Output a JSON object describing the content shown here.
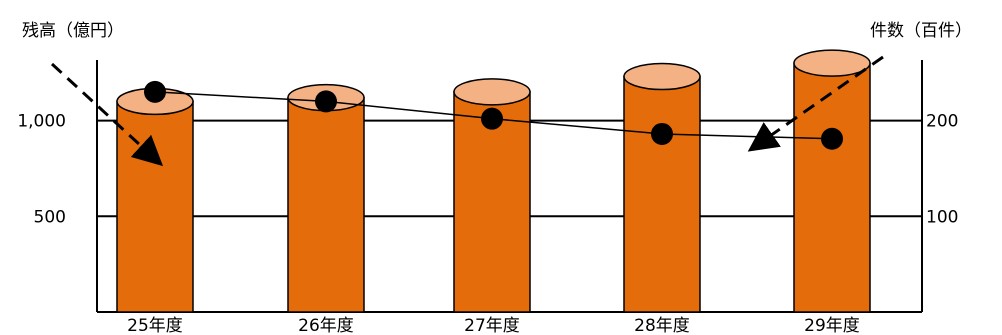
{
  "chart_data": {
    "type": "bar+line",
    "categories": [
      "25年度",
      "26年度",
      "27年度",
      "28年度",
      "29年度"
    ],
    "series": [
      {
        "name": "残高（億円）",
        "axis": "left",
        "type": "bar",
        "values": [
          1100,
          1120,
          1150,
          1230,
          1300
        ],
        "color": "#E46C0A",
        "top_color": "#F4B183"
      },
      {
        "name": "件数（百件）",
        "axis": "right",
        "type": "line",
        "values": [
          230,
          220,
          202,
          186,
          181
        ],
        "color": "#000000"
      }
    ],
    "y_left": {
      "label": "残高（億円）",
      "ticks": [
        "500",
        "1,000"
      ],
      "tick_values": [
        500,
        1000
      ],
      "range": [
        0,
        1400
      ]
    },
    "y_right": {
      "label": "件数（百件）",
      "ticks": [
        "100",
        "200"
      ],
      "tick_values": [
        100,
        200
      ],
      "range": [
        0,
        280
      ]
    },
    "grid": true,
    "legend": "none"
  }
}
